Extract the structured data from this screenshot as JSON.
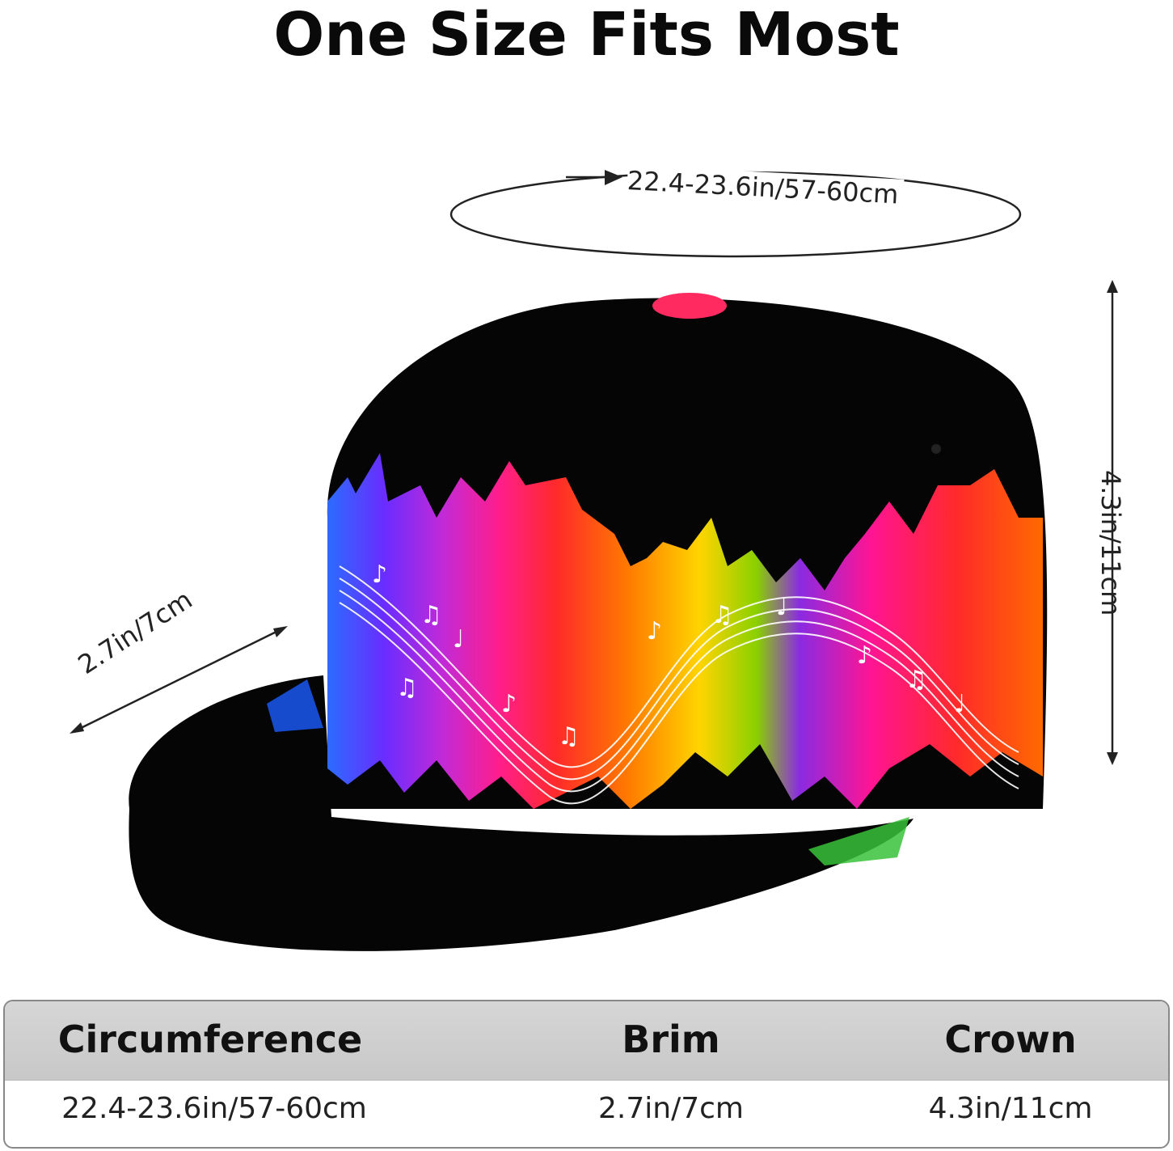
{
  "title": "One Size Fits Most",
  "dimensions": {
    "circumference": "22.4-23.6in/57-60cm",
    "brim": "2.7in/7cm",
    "crown": "4.3in/11cm"
  },
  "table": {
    "headers": [
      "Circumference",
      "Brim",
      "Crown"
    ],
    "values": [
      "22.4-23.6in/57-60cm",
      "2.7in/7cm",
      "4.3in/11cm"
    ]
  },
  "colors": {
    "cap": "#050505",
    "rainbow": [
      "#2b6cff",
      "#7a2cff",
      "#ff1e8c",
      "#ff2a2a",
      "#ff7a00",
      "#ffd400",
      "#8ad000",
      "#8a2be2",
      "#ff1493"
    ],
    "table_header_bg": "#cfcfcf"
  }
}
